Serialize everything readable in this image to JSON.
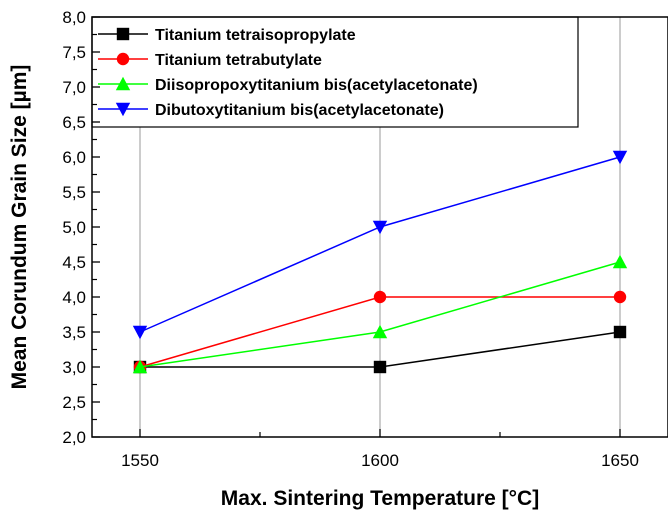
{
  "chart_data": {
    "type": "line",
    "x": [
      1550,
      1600,
      1650
    ],
    "xlim": [
      1540,
      1660
    ],
    "ylim": [
      2.0,
      8.0
    ],
    "x_ticks": [
      "1550",
      "1600",
      "1650"
    ],
    "y_ticks": [
      "2,0",
      "2,5",
      "3,0",
      "3,5",
      "4,0",
      "4,5",
      "5,0",
      "5,5",
      "6,0",
      "6,5",
      "7,0",
      "7,5",
      "8,0"
    ],
    "xlabel": "Max. Sintering Temperature [°C]",
    "ylabel": "Mean Corundum Grain Size [µm]",
    "grid": true,
    "legend_position": "top",
    "series": [
      {
        "name": "Titanium tetraisopropylate",
        "values": [
          3.0,
          3.0,
          3.5
        ],
        "color": "#000000",
        "marker": "square"
      },
      {
        "name": "Titanium tetrabutylate",
        "values": [
          3.0,
          4.0,
          4.0
        ],
        "color": "#ff0000",
        "marker": "circle"
      },
      {
        "name": "Diisopropoxytitanium bis(acetylacetonate)",
        "values": [
          3.0,
          3.5,
          4.5
        ],
        "color": "#00ff00",
        "marker": "triangle-up"
      },
      {
        "name": "Dibutoxytitanium bis(acetylacetonate)",
        "values": [
          3.5,
          5.0,
          6.0
        ],
        "color": "#0000ff",
        "marker": "triangle-down"
      }
    ]
  }
}
